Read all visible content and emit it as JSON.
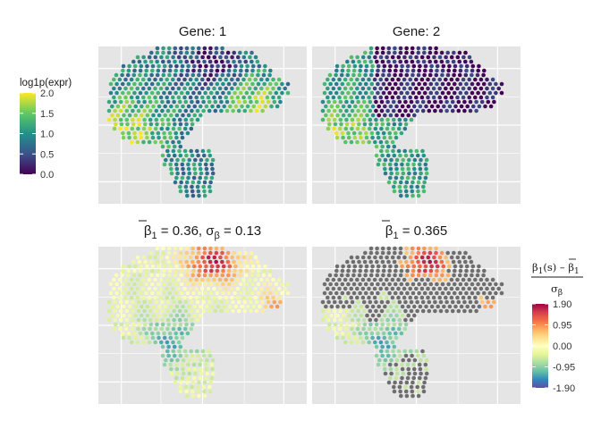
{
  "chart_data": [
    {
      "type": "scatter",
      "panel": "top-left",
      "title": "Gene: 1",
      "color_variable": "log1p(expr)",
      "point_values": "gene1"
    },
    {
      "type": "scatter",
      "panel": "top-right",
      "title": "Gene: 2",
      "color_variable": "log1p(expr)",
      "point_values": "gene2"
    },
    {
      "type": "scatter",
      "panel": "bottom-left",
      "title_parts": {
        "beta": "β",
        "sub1": "1",
        "eq1": " = 0.36, ",
        "sigma": "σ",
        "subb": "β",
        "eq2": " = 0.13"
      },
      "color_variable": "standardized beta",
      "point_values": "beta_full"
    },
    {
      "type": "scatter",
      "panel": "bottom-right",
      "title_parts": {
        "beta": "β",
        "sub1": "1",
        "eq1": " = 0.365"
      },
      "color_variable": "standardized beta (significant only)",
      "point_values": "beta_sig",
      "nonsignificant_color": "#6e6e6e"
    }
  ],
  "legend_expr": {
    "title": "log1p(expr)",
    "ticks": [
      "2.0",
      "1.5",
      "1.0",
      "0.5",
      "0.0"
    ],
    "tick_values": [
      2.0,
      1.5,
      1.0,
      0.5,
      0.0
    ],
    "range": [
      0,
      2
    ],
    "colormap": "viridis"
  },
  "legend_beta": {
    "title_num": {
      "a": "β",
      "b": "1",
      "c": "(s) – ",
      "d": "β",
      "e": "1"
    },
    "title_den": {
      "a": "σ",
      "b": "β"
    },
    "ticks": [
      "1.90",
      "0.95",
      "0.00",
      "-0.95",
      "-1.90"
    ],
    "tick_values": [
      1.9,
      0.95,
      0.0,
      -0.95,
      -1.9
    ],
    "range": [
      -1.9,
      1.9
    ],
    "colormap": "spectral-reversed"
  },
  "colors": {
    "panel_bg": "#e5e5e5",
    "grid": "#ffffff",
    "viridis": [
      "#440154",
      "#3b528b",
      "#21918c",
      "#5ec962",
      "#fde725"
    ],
    "spectral": [
      "#5e4fa2",
      "#3288bd",
      "#66c2a5",
      "#abdda4",
      "#e6f598",
      "#ffffbf",
      "#fee08b",
      "#fdae61",
      "#f46d43",
      "#d53e4f",
      "#9e0142"
    ]
  }
}
